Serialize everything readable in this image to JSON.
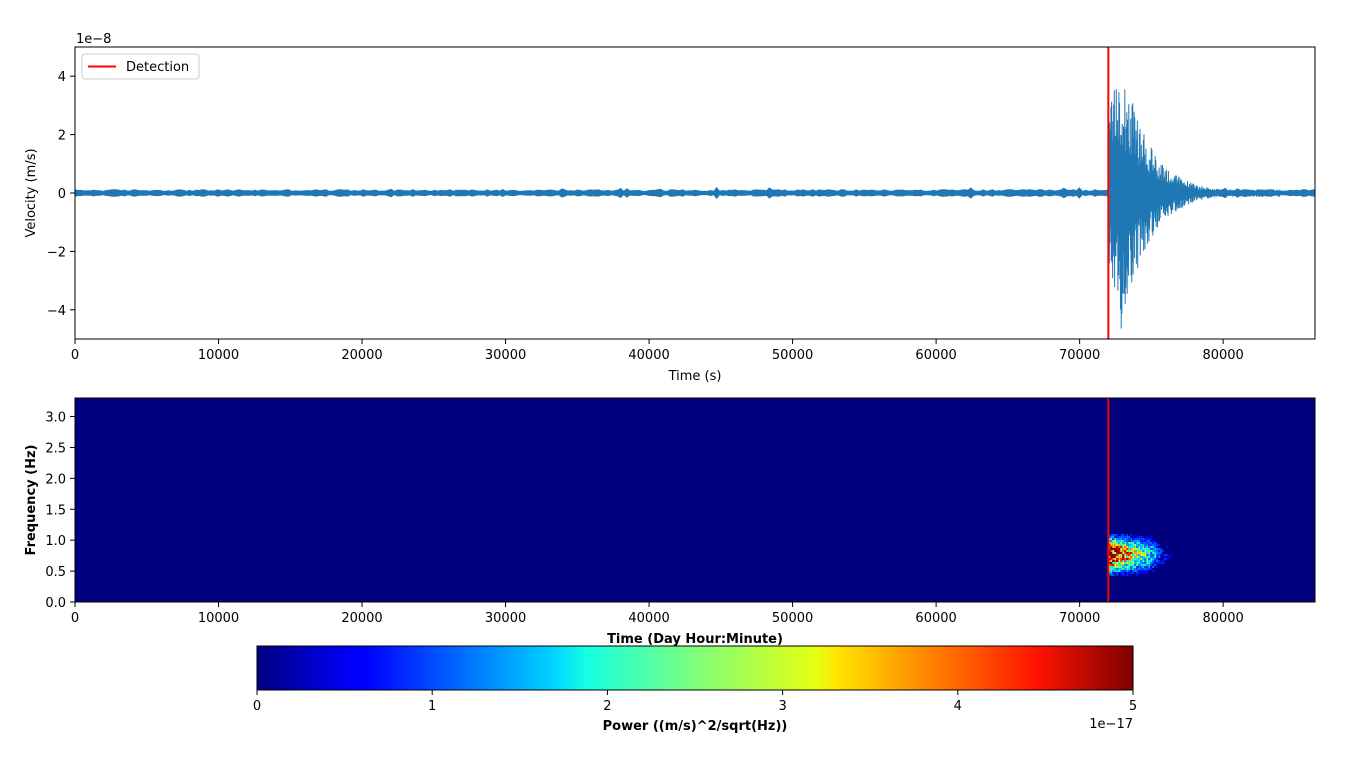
{
  "chart_data": [
    {
      "type": "line",
      "xlabel": "Time (s)",
      "ylabel": "Velocity (m/s)",
      "offset_text": "1e−8",
      "xlim": [
        0,
        86400
      ],
      "ylim": [
        -5,
        5
      ],
      "x_ticks": [
        0,
        10000,
        20000,
        30000,
        40000,
        50000,
        60000,
        70000,
        80000
      ],
      "y_ticks": [
        -4,
        -2,
        0,
        2,
        4
      ],
      "y_tick_labels": [
        "−4",
        "−2",
        "0",
        "2",
        "4"
      ],
      "series": [
        {
          "color": "#1f77b4",
          "noise_amplitude": 0.1,
          "event_start": 72000,
          "event_peak": 4.7,
          "event_peak_time": 72900,
          "event_end": 84000
        }
      ],
      "detection": {
        "x": 72000,
        "color": "#ff0000"
      },
      "legend": {
        "label": "Detection",
        "placement": "upper-left"
      }
    },
    {
      "type": "heatmap",
      "xlabel": "Time (Day Hour:Minute)",
      "ylabel": "Frequency (Hz)",
      "xlim": [
        0,
        86400
      ],
      "ylim": [
        0,
        3.3
      ],
      "x_ticks": [
        0,
        10000,
        20000,
        30000,
        40000,
        50000,
        60000,
        70000,
        80000
      ],
      "y_ticks": [
        0.0,
        0.5,
        1.0,
        1.5,
        2.0,
        2.5,
        3.0
      ],
      "y_tick_labels": [
        "0.0",
        "0.5",
        "1.0",
        "1.5",
        "2.0",
        "2.5",
        "3.0"
      ],
      "colormap": "jet",
      "background_color": "#00007f",
      "energy_region": {
        "t_start": 72000,
        "t_end": 78000,
        "f_min": 0.45,
        "f_max": 1.1,
        "f_center": 0.78
      },
      "detection": {
        "x": 72000,
        "color": "#ff0000"
      }
    },
    {
      "type": "colorbar",
      "label": "Power ((m/s)^2/sqrt(Hz))",
      "range": [
        0,
        5
      ],
      "ticks": [
        0,
        1,
        2,
        3,
        4,
        5
      ],
      "tick_labels": [
        "0",
        "1",
        "2",
        "3",
        "4",
        "5"
      ],
      "offset_text": "1e−17"
    }
  ]
}
